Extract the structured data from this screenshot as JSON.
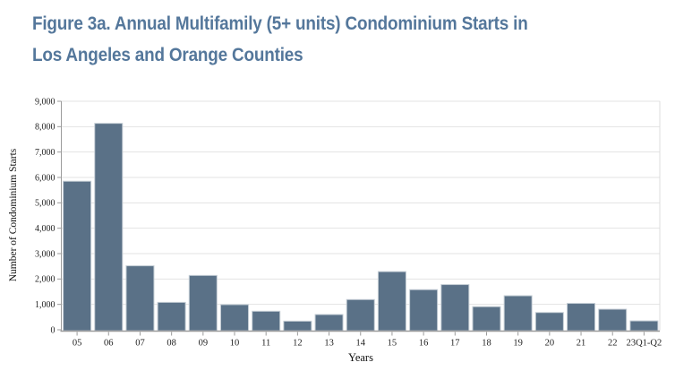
{
  "page": {
    "title_line1": "Figure 3a. Annual Multifamily (5+ units) Condominium Starts in",
    "title_line2": "Los Angeles and Orange Counties",
    "title_color": "#54779b"
  },
  "chart_data": {
    "type": "bar",
    "title": "Figure 3a. Annual Multifamily (5+ units) Condominium Starts in Los Angeles and Orange Counties",
    "xlabel": "Years",
    "ylabel": "Number of Condominium Starts",
    "categories": [
      "05",
      "06",
      "07",
      "08",
      "09",
      "10",
      "11",
      "12",
      "13",
      "14",
      "15",
      "16",
      "17",
      "18",
      "19",
      "20",
      "21",
      "22",
      "23Q1-Q2"
    ],
    "values": [
      5850,
      8130,
      2520,
      1080,
      2140,
      990,
      730,
      340,
      600,
      1190,
      2290,
      1580,
      1780,
      910,
      1340,
      680,
      1040,
      810,
      350
    ],
    "ylim": [
      0,
      9000
    ],
    "ytick_interval": 1000,
    "ytick_labels": [
      "0",
      "1,000",
      "2,000",
      "3,000",
      "4,000",
      "5,000",
      "6,000",
      "7,000",
      "8,000",
      "9,000"
    ],
    "grid": true,
    "legend_position": "none",
    "bar_color": "#5a7187",
    "bar_stroke_color": "#c3ccd4",
    "grid_color": "#e3e3e3",
    "right_border_color": "#dcdcdc",
    "axis_color": "#9b9b9b"
  }
}
